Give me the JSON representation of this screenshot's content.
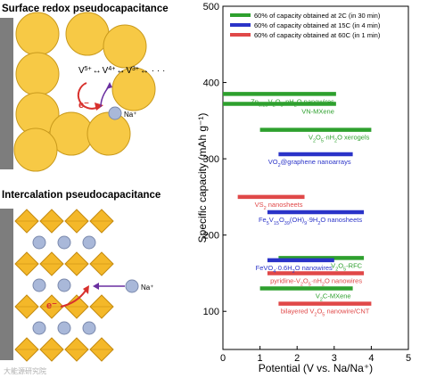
{
  "panels": {
    "surface_title": "Surface redox pseudocapacitance",
    "intercalation_title": "Intercalation pseudocapacitance",
    "redox_chain": [
      "V",
      "5+",
      "↔",
      "V",
      "4+",
      "↔",
      "V",
      "3+",
      "↔ · · ·"
    ],
    "electron_label": "e⁻",
    "ion_label": "Na⁺",
    "watermark": "大能源研究院"
  },
  "colors": {
    "green": "#2ea02e",
    "blue": "#2a33c8",
    "red": "#e04848",
    "sphere_fill": "#f7c945",
    "sphere_edge": "#c99a1c",
    "octa_fill": "#f4b829",
    "octa_edge": "#c48a10",
    "electrode": "#7d7d7d",
    "ion": "#a9b8d9",
    "arrow_red": "#d8312d",
    "arrow_purple": "#6a2fa0"
  },
  "chart_data": {
    "type": "range-bar",
    "xlabel": "Potential (V vs. Na/Na⁺)",
    "ylabel": "Specific capacity (mAh g⁻¹)",
    "xlim": [
      0,
      5
    ],
    "ylim": [
      50,
      500
    ],
    "xticks": [
      0,
      1,
      2,
      3,
      4,
      5
    ],
    "yticks": [
      100,
      200,
      300,
      400,
      500
    ],
    "legend": [
      {
        "label": "60% of capacity obtained at 2C (in 30 min)",
        "color": "green"
      },
      {
        "label": "60% of capacity obtained at 15C (in 4 min)",
        "color": "blue"
      },
      {
        "label": "60% of capacity obtained at 60C (in 1 min)",
        "color": "red"
      }
    ],
    "legend_position": "top-left",
    "bars": [
      {
        "label": "Zn0.25V2O5·nH2O nanowires",
        "capacity": 385,
        "x_start": 0.0,
        "x_end": 3.05,
        "color": "green",
        "label_parts": [
          [
            "Zn",
            ""
          ],
          [
            "0.25",
            "sub"
          ],
          [
            "V",
            ""
          ],
          [
            "2",
            "sub"
          ],
          [
            "O",
            ""
          ],
          [
            "5",
            "sub"
          ],
          [
            "·nH",
            ""
          ],
          [
            "2",
            "sub"
          ],
          [
            "O nanowires",
            ""
          ]
        ]
      },
      {
        "label": "VN-MXene",
        "capacity": 372,
        "x_start": 0.0,
        "x_end": 3.05,
        "color": "green",
        "label_parts": [
          [
            "VN-MXene",
            ""
          ]
        ]
      },
      {
        "label": "V2O5·nH2O xerogels",
        "capacity": 338,
        "x_start": 1.0,
        "x_end": 4.0,
        "color": "green",
        "label_parts": [
          [
            "V",
            ""
          ],
          [
            "2",
            "sub"
          ],
          [
            "O",
            ""
          ],
          [
            "5",
            "sub"
          ],
          [
            "·nH",
            ""
          ],
          [
            "2",
            "sub"
          ],
          [
            "O xerogels",
            ""
          ]
        ]
      },
      {
        "label": "VO2@graphene nanoarrays",
        "capacity": 306,
        "x_start": 1.5,
        "x_end": 3.5,
        "color": "blue",
        "label_parts": [
          [
            "VO",
            ""
          ],
          [
            "2",
            "sub"
          ],
          [
            "@graphene nanoarrays",
            ""
          ]
        ]
      },
      {
        "label": "VS2 nanosheets",
        "capacity": 250,
        "x_start": 0.4,
        "x_end": 2.2,
        "color": "red",
        "label_parts": [
          [
            "VS",
            ""
          ],
          [
            "2",
            "sub"
          ],
          [
            " nanosheets",
            ""
          ]
        ]
      },
      {
        "label": "Fe5V15O39(OH)9·9H2O nanosheets",
        "capacity": 230,
        "x_start": 1.2,
        "x_end": 3.8,
        "color": "blue",
        "label_parts": [
          [
            "Fe",
            ""
          ],
          [
            "5",
            "sub"
          ],
          [
            "V",
            ""
          ],
          [
            "15",
            "sub"
          ],
          [
            "O",
            ""
          ],
          [
            "39",
            "sub"
          ],
          [
            "(OH)",
            ""
          ],
          [
            "9",
            "sub"
          ],
          [
            "·9H",
            ""
          ],
          [
            "2",
            "sub"
          ],
          [
            "O nanosheets",
            ""
          ]
        ]
      },
      {
        "label": "V2O5-RFC",
        "capacity": 170,
        "x_start": 1.5,
        "x_end": 3.8,
        "color": "green",
        "label_parts": [
          [
            "V",
            ""
          ],
          [
            "2",
            "sub"
          ],
          [
            "O",
            ""
          ],
          [
            "5",
            "sub"
          ],
          [
            "-RFC",
            ""
          ]
        ]
      },
      {
        "label": "FeVO4·0.6H2O nanowires",
        "capacity": 167,
        "x_start": 1.2,
        "x_end": 3.0,
        "color": "blue",
        "label_parts": [
          [
            "FeVO",
            ""
          ],
          [
            "4",
            "sub"
          ],
          [
            "·0.6H",
            ""
          ],
          [
            "2",
            "sub"
          ],
          [
            "O nanowires",
            ""
          ]
        ]
      },
      {
        "label": "pyridine-V2O5·nH2O nanowires",
        "capacity": 150,
        "x_start": 1.2,
        "x_end": 3.8,
        "color": "red",
        "label_parts": [
          [
            "pyridine-V",
            ""
          ],
          [
            "2",
            "sub"
          ],
          [
            "O",
            ""
          ],
          [
            "5",
            "sub"
          ],
          [
            "·nH",
            ""
          ],
          [
            "2",
            "sub"
          ],
          [
            "O nanowires",
            ""
          ]
        ]
      },
      {
        "label": "V2C-MXene",
        "capacity": 130,
        "x_start": 1.0,
        "x_end": 3.5,
        "color": "green",
        "label_parts": [
          [
            "V",
            ""
          ],
          [
            "2",
            "sub"
          ],
          [
            "C-MXene",
            ""
          ]
        ]
      },
      {
        "label": "bilayered V2O5 nanowire/CNT",
        "capacity": 110,
        "x_start": 1.5,
        "x_end": 4.0,
        "color": "red",
        "label_parts": [
          [
            "bilayered V",
            ""
          ],
          [
            "2",
            "sub"
          ],
          [
            "O",
            ""
          ],
          [
            "5",
            "sub"
          ],
          [
            " nanowire/CNT",
            ""
          ]
        ]
      }
    ]
  }
}
